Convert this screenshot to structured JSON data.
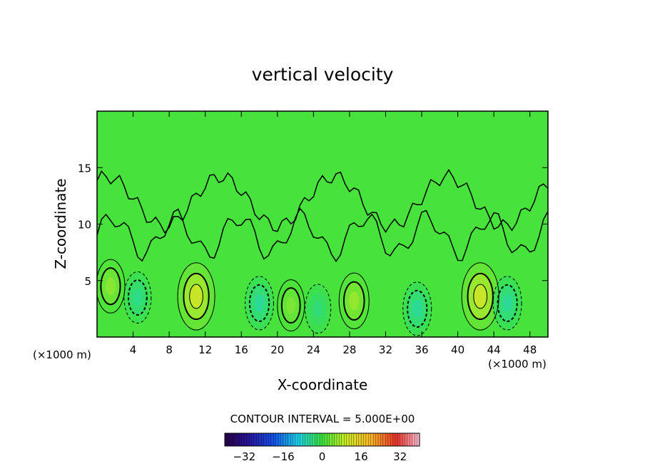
{
  "chart_data": {
    "type": "heatmap",
    "title": "vertical velocity",
    "xlabel": "X-coordinate",
    "ylabel": "Z-coordinate",
    "x_unit_left": "(×1000 m)",
    "x_unit_right": "(×1000 m)",
    "xlim": [
      0,
      50
    ],
    "ylim": [
      0,
      20
    ],
    "x_ticks": [
      4,
      8,
      12,
      16,
      20,
      24,
      28,
      32,
      36,
      40,
      44,
      48
    ],
    "y_ticks": [
      5,
      10,
      15
    ],
    "contour_interval_label": "CONTOUR INTERVAL = 5.000E+00",
    "contour_interval": 5.0,
    "colorbar": {
      "min": -40,
      "max": 40,
      "ticks": [
        -32,
        -16,
        0,
        16,
        32
      ],
      "colormap": "rainbow (purple-blue-cyan-green-yellow-red-pink)"
    },
    "features": [
      {
        "type": "updraft",
        "x": 11,
        "z": 3.6,
        "peak": 12
      },
      {
        "type": "updraft",
        "x": 42.5,
        "z": 3.6,
        "peak": 12
      },
      {
        "type": "updraft",
        "x": 28.5,
        "z": 3.2,
        "peak": 7
      },
      {
        "type": "updraft",
        "x": 21.5,
        "z": 2.8,
        "peak": 5
      },
      {
        "type": "updraft",
        "x": 1.5,
        "z": 4.5,
        "peak": 6
      },
      {
        "type": "downdraft",
        "x": 4.5,
        "z": 3.5,
        "peak": -5
      },
      {
        "type": "downdraft",
        "x": 18,
        "z": 3,
        "peak": -6
      },
      {
        "type": "downdraft",
        "x": 24.5,
        "z": 2.5,
        "peak": -4
      },
      {
        "type": "downdraft",
        "x": 35.5,
        "z": 2.5,
        "peak": -6
      },
      {
        "type": "downdraft",
        "x": 45.5,
        "z": 3,
        "peak": -6
      }
    ]
  }
}
